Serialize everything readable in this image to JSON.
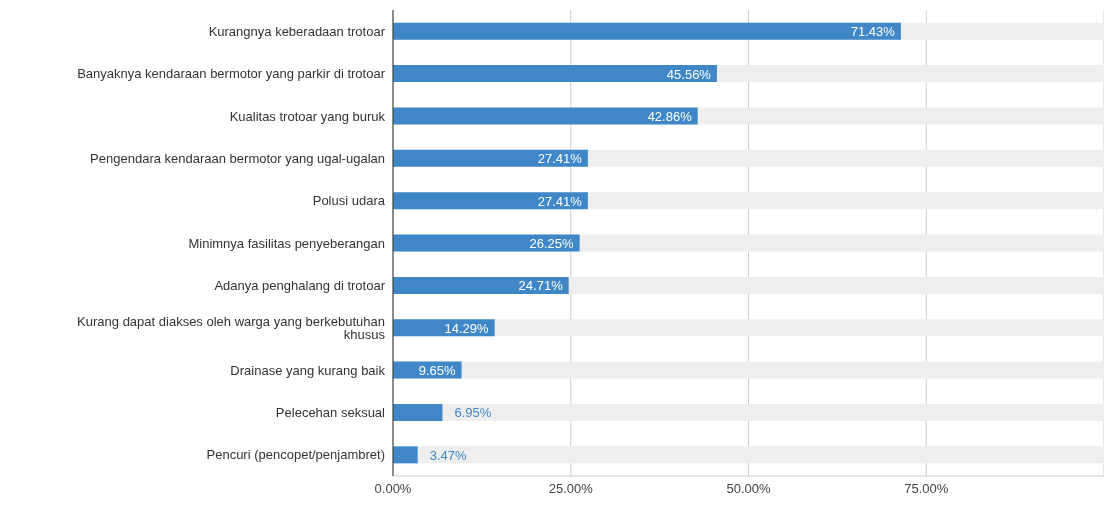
{
  "chart_data": {
    "type": "bar",
    "orientation": "horizontal",
    "categories": [
      "Kurangnya keberadaan trotoar",
      "Banyaknya kendaraan bermotor yang parkir di trotoar",
      "Kualitas trotoar yang buruk",
      "Pengendara kendaraan bermotor yang ugal-ugalan",
      "Polusi udara",
      "Minimnya fasilitas penyeberangan",
      "Adanya penghalang di trotoar",
      "Kurang dapat diakses oleh warga yang berkebutuhan khusus",
      "Drainase yang kurang baik",
      "Pelecehan seksual",
      "Pencuri (pencopet/penjambret)"
    ],
    "values": [
      71.43,
      45.56,
      42.86,
      27.41,
      27.41,
      26.25,
      24.71,
      14.29,
      9.65,
      6.95,
      3.47
    ],
    "value_labels": [
      "71.43%",
      "45.56%",
      "42.86%",
      "27.41%",
      "27.41%",
      "26.25%",
      "24.71%",
      "14.29%",
      "9.65%",
      "6.95%",
      "3.47%"
    ],
    "color": "#3f87c7",
    "xlim": [
      0,
      100
    ],
    "xticks": [
      {
        "value": 0,
        "label": "0.00%"
      },
      {
        "value": 25,
        "label": "25.00%"
      },
      {
        "value": 50,
        "label": "50.00%"
      },
      {
        "value": 75,
        "label": "75.00%"
      }
    ],
    "grid": "x"
  }
}
